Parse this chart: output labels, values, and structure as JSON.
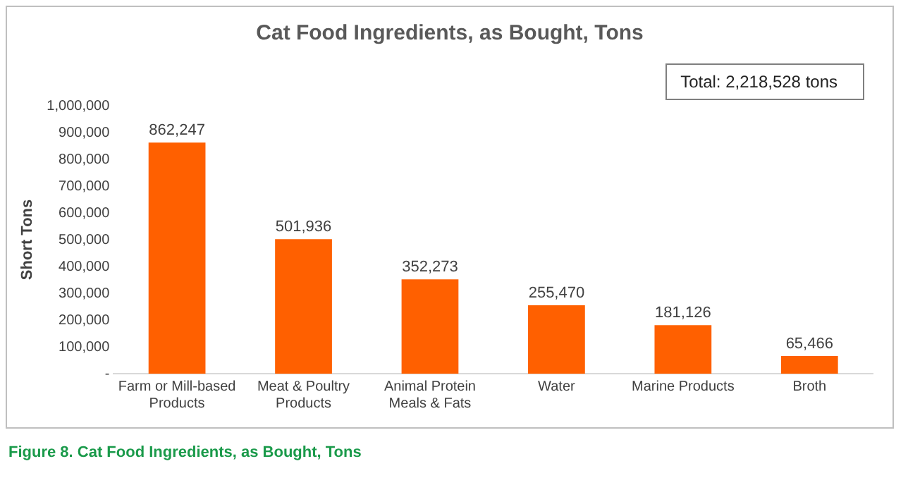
{
  "chart_data": {
    "type": "bar",
    "title": "Cat Food Ingredients, as Bought, Tons",
    "ylabel": "Short Tons",
    "categories": [
      "Farm or Mill-based Products",
      "Meat & Poultry Products",
      "Animal Protein Meals & Fats",
      "Water",
      "Marine Products",
      "Broth"
    ],
    "values": [
      862247,
      501936,
      352273,
      255470,
      181126,
      65466
    ],
    "color": "#ff6000",
    "value_labels": [
      "862,247",
      "501,936",
      "352,273",
      "255,470",
      "181,126",
      "65,466"
    ],
    "ylim": [
      0,
      1000000
    ],
    "yticks": [
      {
        "value": 0,
        "label": "-"
      },
      {
        "value": 100000,
        "label": "100,000"
      },
      {
        "value": 200000,
        "label": "200,000"
      },
      {
        "value": 300000,
        "label": "300,000"
      },
      {
        "value": 400000,
        "label": "400,000"
      },
      {
        "value": 500000,
        "label": "500,000"
      },
      {
        "value": 600000,
        "label": "600,000"
      },
      {
        "value": 700000,
        "label": "700,000"
      },
      {
        "value": 800000,
        "label": "800,000"
      },
      {
        "value": 900000,
        "label": "900,000"
      },
      {
        "value": 1000000,
        "label": "1,000,000"
      }
    ],
    "grid": false,
    "legend": false,
    "annotations": [
      "Total: 2,218,528 tons",
      "Figure 8. Cat Food Ingredients, as Bought, Tons"
    ]
  }
}
